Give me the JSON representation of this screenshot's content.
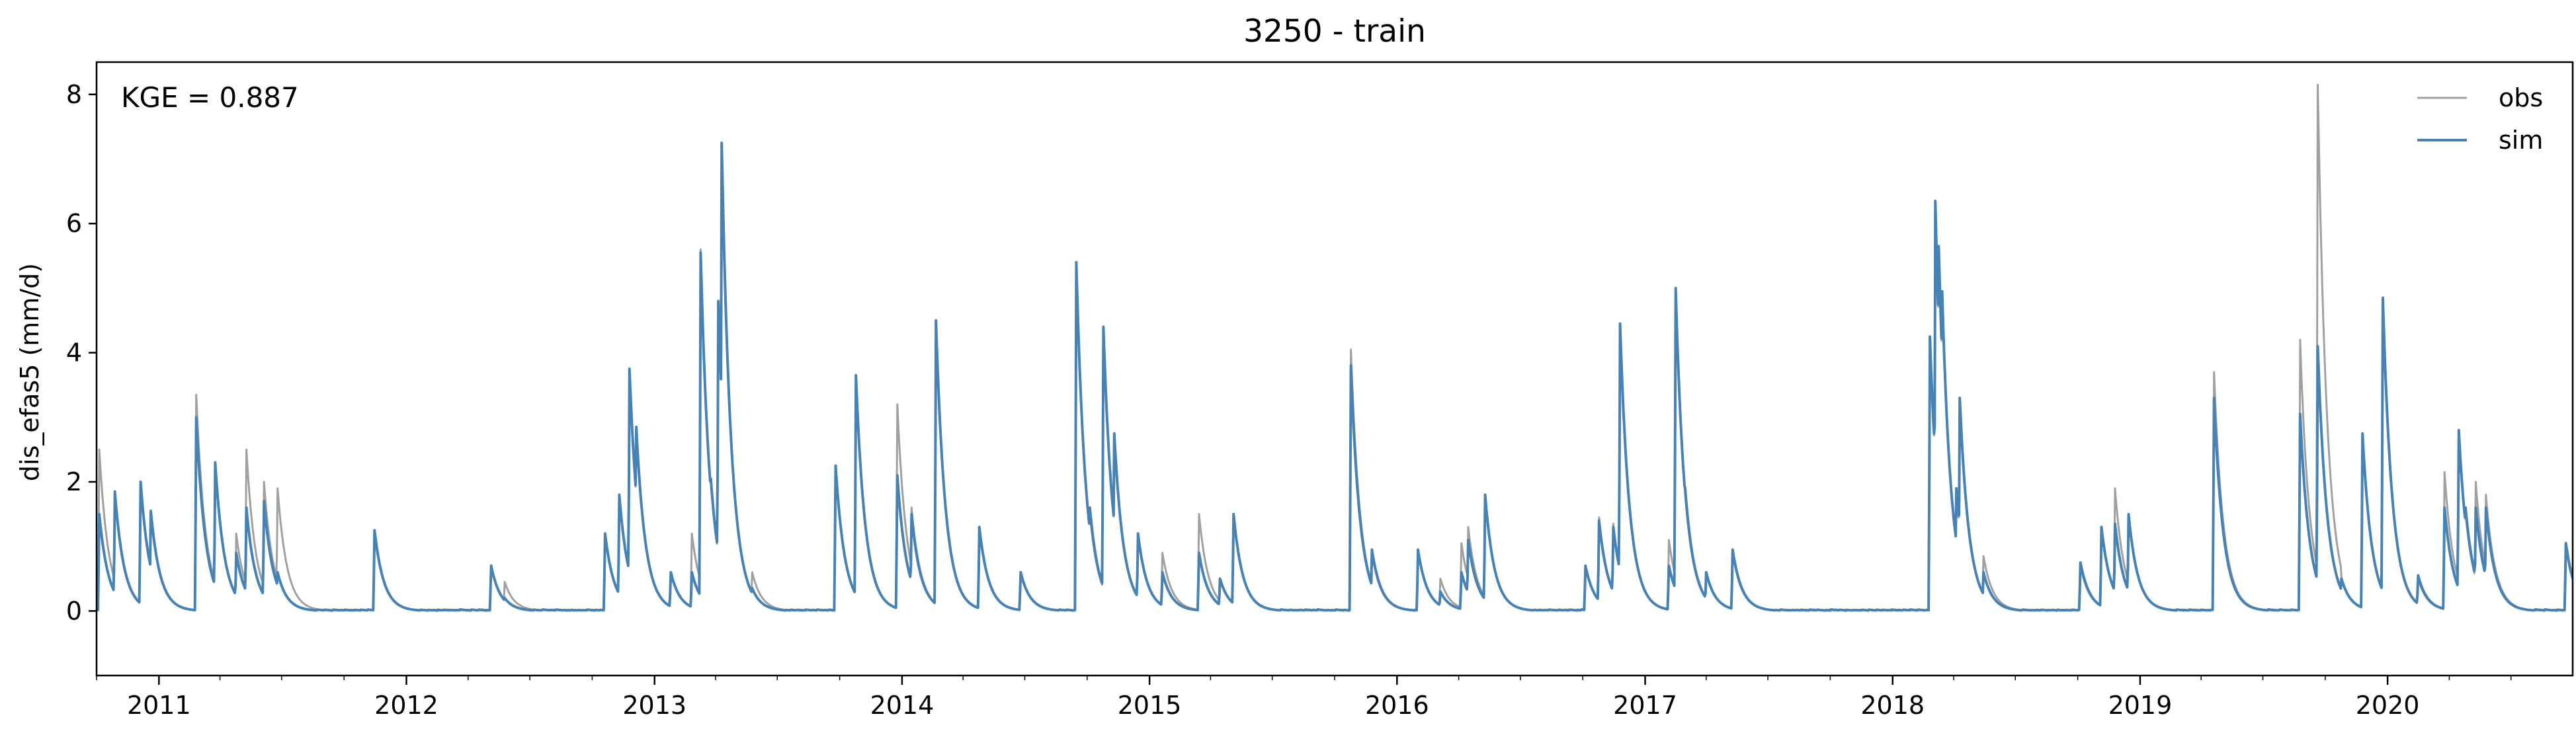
{
  "chart_data": {
    "type": "line",
    "title": "3250 - train",
    "ylabel": "dis_efas5 (mm/d)",
    "xlabel": "",
    "annotation": "KGE = 0.887",
    "legend_placement": "top-right",
    "grid": false,
    "xlim": [
      "2010-10-01",
      "2020-09-30"
    ],
    "ylim": [
      -1,
      8.5
    ],
    "yticks": [
      0,
      2,
      4,
      6,
      8
    ],
    "xticks": [
      {
        "date": "2011-01-01",
        "label": "2011"
      },
      {
        "date": "2012-01-01",
        "label": "2012"
      },
      {
        "date": "2013-01-01",
        "label": "2013"
      },
      {
        "date": "2014-01-01",
        "label": "2014"
      },
      {
        "date": "2015-01-01",
        "label": "2015"
      },
      {
        "date": "2016-01-01",
        "label": "2016"
      },
      {
        "date": "2017-01-01",
        "label": "2017"
      },
      {
        "date": "2018-01-01",
        "label": "2018"
      },
      {
        "date": "2019-01-01",
        "label": "2019"
      },
      {
        "date": "2020-01-01",
        "label": "2020"
      }
    ],
    "series": [
      {
        "name": "obs",
        "color": "#a0a0a0",
        "peaks": [
          [
            "2010-10-05",
            2.5
          ],
          [
            "2010-10-28",
            1.8
          ],
          [
            "2010-12-05",
            2.0
          ],
          [
            "2010-12-20",
            1.5
          ],
          [
            "2011-02-25",
            3.35
          ],
          [
            "2011-03-25",
            2.3
          ],
          [
            "2011-04-25",
            1.2
          ],
          [
            "2011-05-10",
            2.5
          ],
          [
            "2011-06-05",
            2.0
          ],
          [
            "2011-06-25",
            1.9
          ],
          [
            "2011-11-15",
            1.2
          ],
          [
            "2012-05-05",
            0.7
          ],
          [
            "2012-05-25",
            0.45
          ],
          [
            "2012-10-20",
            1.2
          ],
          [
            "2012-11-10",
            1.8
          ],
          [
            "2012-11-25",
            3.7
          ],
          [
            "2012-12-05",
            2.85
          ],
          [
            "2013-01-25",
            0.6
          ],
          [
            "2013-02-25",
            1.2
          ],
          [
            "2013-03-10",
            5.6
          ],
          [
            "2013-03-25",
            2.0
          ],
          [
            "2013-04-05",
            4.8
          ],
          [
            "2013-04-10",
            7.2
          ],
          [
            "2013-05-25",
            0.6
          ],
          [
            "2013-09-25",
            2.25
          ],
          [
            "2013-10-25",
            3.6
          ],
          [
            "2013-12-25",
            3.2
          ],
          [
            "2014-01-15",
            1.6
          ],
          [
            "2014-02-20",
            4.5
          ],
          [
            "2014-04-25",
            1.3
          ],
          [
            "2014-06-25",
            0.6
          ],
          [
            "2014-09-15",
            5.35
          ],
          [
            "2014-10-05",
            1.5
          ],
          [
            "2014-10-25",
            4.35
          ],
          [
            "2014-11-10",
            2.7
          ],
          [
            "2014-12-15",
            1.2
          ],
          [
            "2015-01-20",
            0.9
          ],
          [
            "2015-03-15",
            1.5
          ],
          [
            "2015-04-15",
            0.5
          ],
          [
            "2015-05-05",
            1.5
          ],
          [
            "2015-10-25",
            4.05
          ],
          [
            "2015-11-25",
            0.9
          ],
          [
            "2016-02-01",
            0.95
          ],
          [
            "2016-03-05",
            0.5
          ],
          [
            "2016-04-05",
            1.05
          ],
          [
            "2016-04-15",
            1.3
          ],
          [
            "2016-05-10",
            1.8
          ],
          [
            "2016-10-05",
            0.7
          ],
          [
            "2016-10-25",
            1.45
          ],
          [
            "2016-11-15",
            1.35
          ],
          [
            "2016-11-25",
            4.4
          ],
          [
            "2016-12-05",
            2.1
          ],
          [
            "2017-02-05",
            1.1
          ],
          [
            "2017-02-15",
            5.0
          ],
          [
            "2017-03-01",
            1.8
          ],
          [
            "2017-04-01",
            0.6
          ],
          [
            "2017-05-10",
            0.9
          ],
          [
            "2018-02-25",
            4.2
          ],
          [
            "2018-03-05",
            6.3
          ],
          [
            "2018-03-10",
            5.6
          ],
          [
            "2018-03-15",
            4.95
          ],
          [
            "2018-04-05",
            1.8
          ],
          [
            "2018-04-10",
            3.25
          ],
          [
            "2018-05-15",
            0.85
          ],
          [
            "2018-10-05",
            0.7
          ],
          [
            "2018-11-05",
            1.3
          ],
          [
            "2018-11-25",
            1.9
          ],
          [
            "2018-12-15",
            1.5
          ],
          [
            "2019-04-20",
            3.7
          ],
          [
            "2019-08-25",
            4.2
          ],
          [
            "2019-09-20",
            8.15
          ],
          [
            "2019-10-25",
            0.5
          ],
          [
            "2019-11-25",
            2.75
          ],
          [
            "2019-12-25",
            4.8
          ],
          [
            "2020-02-15",
            0.5
          ],
          [
            "2020-03-25",
            2.15
          ],
          [
            "2020-04-15",
            2.75
          ],
          [
            "2020-04-25",
            1.5
          ],
          [
            "2020-05-10",
            2.0
          ],
          [
            "2020-05-25",
            1.8
          ],
          [
            "2020-09-20",
            1.0
          ]
        ]
      },
      {
        "name": "sim",
        "color": "#4682b4",
        "peaks": [
          [
            "2010-10-05",
            1.5
          ],
          [
            "2010-10-28",
            1.85
          ],
          [
            "2010-12-05",
            2.0
          ],
          [
            "2010-12-20",
            1.55
          ],
          [
            "2011-02-25",
            3.0
          ],
          [
            "2011-03-25",
            2.3
          ],
          [
            "2011-04-25",
            0.9
          ],
          [
            "2011-05-10",
            1.6
          ],
          [
            "2011-06-05",
            1.7
          ],
          [
            "2011-06-25",
            0.6
          ],
          [
            "2011-11-15",
            1.25
          ],
          [
            "2012-05-05",
            0.7
          ],
          [
            "2012-05-25",
            0.2
          ],
          [
            "2012-10-20",
            1.2
          ],
          [
            "2012-11-10",
            1.8
          ],
          [
            "2012-11-25",
            3.75
          ],
          [
            "2012-12-05",
            2.85
          ],
          [
            "2013-01-25",
            0.6
          ],
          [
            "2013-02-25",
            0.6
          ],
          [
            "2013-03-10",
            5.55
          ],
          [
            "2013-03-25",
            2.05
          ],
          [
            "2013-04-05",
            4.8
          ],
          [
            "2013-04-10",
            7.25
          ],
          [
            "2013-05-25",
            0.35
          ],
          [
            "2013-09-25",
            2.25
          ],
          [
            "2013-10-25",
            3.65
          ],
          [
            "2013-12-25",
            2.1
          ],
          [
            "2014-01-15",
            1.5
          ],
          [
            "2014-02-20",
            4.5
          ],
          [
            "2014-04-25",
            1.3
          ],
          [
            "2014-06-25",
            0.6
          ],
          [
            "2014-09-15",
            5.4
          ],
          [
            "2014-10-05",
            1.6
          ],
          [
            "2014-10-25",
            4.4
          ],
          [
            "2014-11-10",
            2.75
          ],
          [
            "2014-12-15",
            1.2
          ],
          [
            "2015-01-20",
            0.6
          ],
          [
            "2015-03-15",
            0.9
          ],
          [
            "2015-04-15",
            0.5
          ],
          [
            "2015-05-05",
            1.5
          ],
          [
            "2015-10-25",
            3.8
          ],
          [
            "2015-11-25",
            0.95
          ],
          [
            "2016-02-01",
            0.95
          ],
          [
            "2016-03-05",
            0.3
          ],
          [
            "2016-04-05",
            0.6
          ],
          [
            "2016-04-15",
            1.1
          ],
          [
            "2016-05-10",
            1.8
          ],
          [
            "2016-10-05",
            0.7
          ],
          [
            "2016-10-25",
            1.4
          ],
          [
            "2016-11-15",
            1.3
          ],
          [
            "2016-11-25",
            4.45
          ],
          [
            "2016-12-05",
            2.15
          ],
          [
            "2017-02-05",
            0.7
          ],
          [
            "2017-02-15",
            5.0
          ],
          [
            "2017-03-01",
            1.9
          ],
          [
            "2017-04-01",
            0.6
          ],
          [
            "2017-05-10",
            0.95
          ],
          [
            "2018-02-25",
            4.25
          ],
          [
            "2018-03-05",
            6.35
          ],
          [
            "2018-03-10",
            5.65
          ],
          [
            "2018-03-15",
            4.95
          ],
          [
            "2018-04-05",
            1.9
          ],
          [
            "2018-04-10",
            3.3
          ],
          [
            "2018-05-15",
            0.6
          ],
          [
            "2018-10-05",
            0.75
          ],
          [
            "2018-11-05",
            1.3
          ],
          [
            "2018-11-25",
            1.35
          ],
          [
            "2018-12-15",
            1.5
          ],
          [
            "2019-04-20",
            3.3
          ],
          [
            "2019-08-25",
            3.05
          ],
          [
            "2019-09-20",
            4.1
          ],
          [
            "2019-10-25",
            0.5
          ],
          [
            "2019-11-25",
            2.75
          ],
          [
            "2019-12-25",
            4.85
          ],
          [
            "2020-02-15",
            0.55
          ],
          [
            "2020-03-25",
            1.6
          ],
          [
            "2020-04-15",
            2.8
          ],
          [
            "2020-04-25",
            1.6
          ],
          [
            "2020-05-10",
            1.6
          ],
          [
            "2020-05-25",
            1.6
          ],
          [
            "2020-09-20",
            1.05
          ]
        ]
      }
    ]
  }
}
